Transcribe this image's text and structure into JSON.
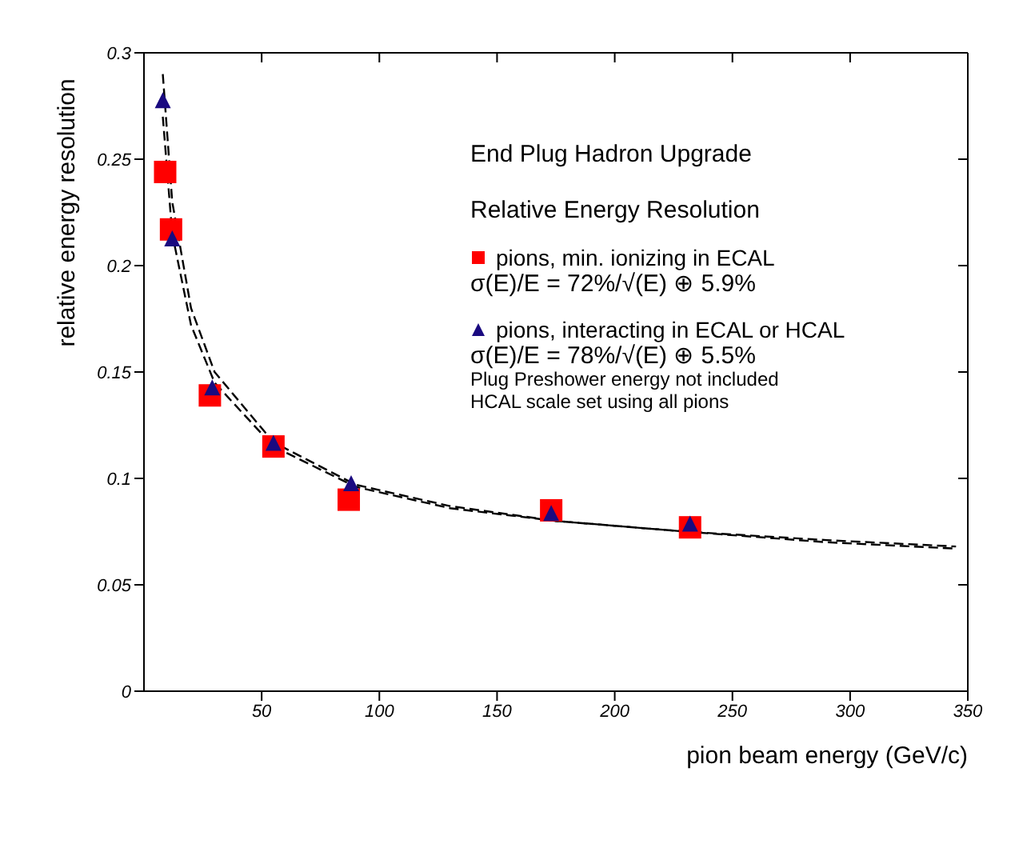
{
  "chart_data": {
    "type": "scatter",
    "title": "End Plug Hadron Upgrade",
    "subtitle": "Relative Energy Resolution",
    "xlabel": "pion beam energy (GeV/c)",
    "ylabel": "relative energy resolution",
    "annotations": [
      "σ(E)/E = 72%/√(E) ⊕ 5.9%",
      "σ(E)/E = 78%/√(E) ⊕ 5.5%",
      "Plug Preshower energy not included",
      "HCAL scale set using all pions"
    ],
    "xlim": [
      0,
      350
    ],
    "xticks": [
      50,
      100,
      150,
      200,
      250,
      300,
      350
    ],
    "ylim": [
      0,
      0.3
    ],
    "yticks": [
      0,
      0.05,
      0.1,
      0.15,
      0.2,
      0.25,
      0.3
    ],
    "legend": "top right",
    "series": [
      {
        "name": "pions, min. ionizing in ECAL",
        "marker": "square",
        "color": "#ff0000",
        "x": [
          9,
          11.5,
          28,
          55,
          87,
          173,
          232
        ],
        "values": [
          0.244,
          0.217,
          0.139,
          0.115,
          0.09,
          0.085,
          0.077
        ]
      },
      {
        "name": "pions, interacting in ECAL or HCAL",
        "marker": "triangle",
        "color": "#1a0a80",
        "x": [
          8,
          12,
          29,
          55,
          88,
          173,
          232
        ],
        "values": [
          0.277,
          0.212,
          0.142,
          0.116,
          0.097,
          0.083,
          0.078
        ]
      },
      {
        "type": "line",
        "marker": "none",
        "line_style": "dashed",
        "color": "#000000",
        "x": [
          8,
          12,
          20,
          30,
          55,
          90,
          130,
          175,
          230,
          290,
          345
        ],
        "values": [
          0.27,
          0.215,
          0.172,
          0.145,
          0.115,
          0.096,
          0.086,
          0.08,
          0.075,
          0.071,
          0.068
        ]
      },
      {
        "type": "line",
        "marker": "none",
        "line_style": "dashed",
        "color": "#000000",
        "x": [
          8,
          12,
          20,
          30,
          55,
          90,
          130,
          175,
          230,
          290,
          345
        ],
        "values": [
          0.29,
          0.23,
          0.18,
          0.15,
          0.117,
          0.097,
          0.087,
          0.08,
          0.075,
          0.07,
          0.067
        ]
      }
    ]
  }
}
